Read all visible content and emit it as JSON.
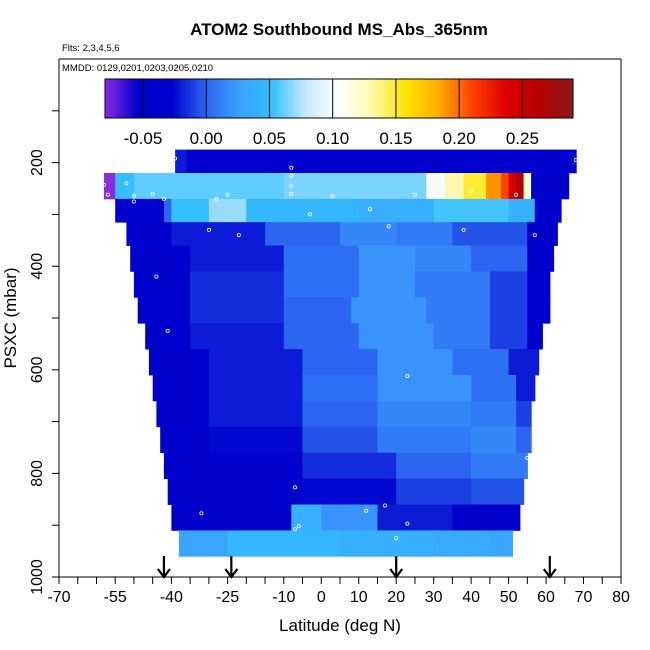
{
  "chart_data": {
    "type": "heatmap",
    "title": "ATOM2 Southbound MS_Abs_365nm",
    "flights_note": "Flts: 2,3,4,5,6",
    "dates_note": "MMDD: 0129,0201,0203,0205,0210",
    "xlabel": "Latitude (deg N)",
    "ylabel": "PSXC (mbar)",
    "xlim": [
      -70,
      80
    ],
    "ylim": [
      1000,
      0
    ],
    "x_ticks": [
      {
        "value": -70,
        "label": "-70"
      },
      {
        "value": -55,
        "label": "-55"
      },
      {
        "value": -40,
        "label": "-40"
      },
      {
        "value": -25,
        "label": "-25"
      },
      {
        "value": -10,
        "label": "-10"
      },
      {
        "value": 0,
        "label": "0"
      },
      {
        "value": 10,
        "label": "10"
      },
      {
        "value": 20,
        "label": "20"
      },
      {
        "value": 30,
        "label": "30"
      },
      {
        "value": 40,
        "label": "40"
      },
      {
        "value": 50,
        "label": "50"
      },
      {
        "value": 60,
        "label": "60"
      },
      {
        "value": 70,
        "label": "70"
      },
      {
        "value": 80,
        "label": "80"
      }
    ],
    "y_ticks": [
      {
        "value": 200,
        "label": "200"
      },
      {
        "value": 400,
        "label": "400"
      },
      {
        "value": 600,
        "label": "600"
      },
      {
        "value": 800,
        "label": "800"
      },
      {
        "value": 1000,
        "label": "1000"
      }
    ],
    "colorbar": {
      "min": -0.08,
      "max": 0.29,
      "ticks": [
        {
          "value": -0.05,
          "label": "-0.05"
        },
        {
          "value": 0.0,
          "label": "0.00"
        },
        {
          "value": 0.05,
          "label": "0.05"
        },
        {
          "value": 0.1,
          "label": "0.10"
        },
        {
          "value": 0.15,
          "label": "0.15"
        },
        {
          "value": 0.2,
          "label": "0.20"
        },
        {
          "value": 0.25,
          "label": "0.25"
        }
      ],
      "colors": [
        "#8a2be2",
        "#0000cd",
        "#0000cd",
        "#2b63f0",
        "#3ba0ff",
        "#33c0ff",
        "#c8e8ff",
        "#ffffff",
        "#fff9a8",
        "#ffe600",
        "#ffaa00",
        "#ff4000",
        "#dd0000",
        "#b40000",
        "#8b1a1a"
      ]
    },
    "arrows_lat": [
      -42,
      -24,
      20,
      61
    ],
    "layers": [
      {
        "p_top": 175,
        "p_bot": 220,
        "lat_min": -39,
        "lat_max": 68,
        "segments": [
          [
            -39,
            -36,
            -0.02
          ],
          [
            -36,
            60,
            -0.03
          ],
          [
            60,
            68,
            -0.05
          ]
        ]
      },
      {
        "p_top": 220,
        "p_bot": 270,
        "lat_min": -58,
        "lat_max": 66,
        "segments": [
          [
            -58,
            -55,
            -0.08
          ],
          [
            -55,
            -50,
            0.05
          ],
          [
            -50,
            -40,
            0.06
          ],
          [
            -40,
            -10,
            0.06
          ],
          [
            -10,
            28,
            0.065
          ],
          [
            28,
            33,
            0.1
          ],
          [
            33,
            38,
            0.13
          ],
          [
            38,
            44,
            0.15
          ],
          [
            44,
            48,
            0.19
          ],
          [
            48,
            50,
            0.21
          ],
          [
            50,
            52,
            0.24
          ],
          [
            52,
            54,
            0.27
          ],
          [
            54,
            56,
            0.12
          ],
          [
            56,
            66,
            -0.03
          ]
        ]
      },
      {
        "p_top": 270,
        "p_bot": 315,
        "lat_min": -55,
        "lat_max": 64,
        "segments": [
          [
            -55,
            -42,
            -0.03
          ],
          [
            -42,
            -40,
            0.0
          ],
          [
            -40,
            -30,
            0.05
          ],
          [
            -30,
            -20,
            0.07
          ],
          [
            -20,
            10,
            0.045
          ],
          [
            10,
            30,
            0.04
          ],
          [
            30,
            50,
            0.055
          ],
          [
            50,
            57,
            0.04
          ],
          [
            57,
            64,
            -0.03
          ]
        ]
      },
      {
        "p_top": 315,
        "p_bot": 360,
        "lat_min": -52,
        "lat_max": 63,
        "segments": [
          [
            -52,
            -40,
            -0.04
          ],
          [
            -40,
            -15,
            -0.02
          ],
          [
            -15,
            5,
            0.0
          ],
          [
            5,
            20,
            0.015
          ],
          [
            20,
            35,
            0.01
          ],
          [
            35,
            55,
            -0.005
          ],
          [
            55,
            63,
            -0.03
          ]
        ]
      },
      {
        "p_top": 360,
        "p_bot": 410,
        "lat_min": -51,
        "lat_max": 62,
        "segments": [
          [
            -51,
            -35,
            -0.04
          ],
          [
            -35,
            -10,
            -0.02
          ],
          [
            -10,
            10,
            0.005
          ],
          [
            10,
            25,
            0.02
          ],
          [
            25,
            40,
            0.015
          ],
          [
            40,
            55,
            0.0
          ],
          [
            55,
            62,
            -0.03
          ]
        ]
      },
      {
        "p_top": 410,
        "p_bot": 460,
        "lat_min": -50,
        "lat_max": 61,
        "segments": [
          [
            -50,
            -35,
            -0.04
          ],
          [
            -35,
            -10,
            -0.015
          ],
          [
            -10,
            10,
            0.005
          ],
          [
            10,
            25,
            0.02
          ],
          [
            25,
            45,
            0.01
          ],
          [
            45,
            55,
            -0.01
          ],
          [
            55,
            61,
            -0.03
          ]
        ]
      },
      {
        "p_top": 460,
        "p_bot": 510,
        "lat_min": -49,
        "lat_max": 61,
        "segments": [
          [
            -49,
            -35,
            -0.035
          ],
          [
            -35,
            -10,
            -0.015
          ],
          [
            -10,
            8,
            0.0
          ],
          [
            8,
            28,
            0.02
          ],
          [
            28,
            45,
            0.01
          ],
          [
            45,
            55,
            -0.01
          ],
          [
            55,
            61,
            -0.03
          ]
        ]
      },
      {
        "p_top": 510,
        "p_bot": 560,
        "lat_min": -47,
        "lat_max": 59,
        "segments": [
          [
            -47,
            -35,
            -0.035
          ],
          [
            -35,
            -10,
            -0.02
          ],
          [
            -10,
            10,
            0.0
          ],
          [
            10,
            30,
            0.02
          ],
          [
            30,
            45,
            0.01
          ],
          [
            45,
            55,
            -0.01
          ],
          [
            55,
            59,
            -0.03
          ]
        ]
      },
      {
        "p_top": 560,
        "p_bot": 610,
        "lat_min": -46,
        "lat_max": 58,
        "segments": [
          [
            -46,
            -30,
            -0.035
          ],
          [
            -30,
            -5,
            -0.02
          ],
          [
            -5,
            15,
            0.0
          ],
          [
            15,
            35,
            0.02
          ],
          [
            35,
            50,
            0.005
          ],
          [
            50,
            58,
            -0.02
          ]
        ]
      },
      {
        "p_top": 610,
        "p_bot": 660,
        "lat_min": -45,
        "lat_max": 57,
        "segments": [
          [
            -45,
            -30,
            -0.035
          ],
          [
            -30,
            -5,
            -0.02
          ],
          [
            -5,
            15,
            0.005
          ],
          [
            15,
            40,
            0.02
          ],
          [
            40,
            52,
            0.005
          ],
          [
            52,
            57,
            -0.02
          ]
        ]
      },
      {
        "p_top": 660,
        "p_bot": 710,
        "lat_min": -44,
        "lat_max": 56,
        "segments": [
          [
            -44,
            -30,
            -0.035
          ],
          [
            -30,
            -5,
            -0.02
          ],
          [
            -5,
            15,
            0.0
          ],
          [
            15,
            40,
            0.015
          ],
          [
            40,
            52,
            0.01
          ],
          [
            52,
            56,
            -0.01
          ]
        ]
      },
      {
        "p_top": 710,
        "p_bot": 760,
        "lat_min": -43,
        "lat_max": 56,
        "segments": [
          [
            -43,
            -30,
            -0.04
          ],
          [
            -30,
            -5,
            -0.025
          ],
          [
            -5,
            15,
            -0.005
          ],
          [
            15,
            40,
            0.01
          ],
          [
            40,
            52,
            0.015
          ],
          [
            52,
            56,
            0.0
          ]
        ]
      },
      {
        "p_top": 760,
        "p_bot": 810,
        "lat_min": -42,
        "lat_max": 55,
        "segments": [
          [
            -42,
            -25,
            -0.04
          ],
          [
            -25,
            -5,
            -0.03
          ],
          [
            -5,
            20,
            -0.015
          ],
          [
            20,
            40,
            0.0
          ],
          [
            40,
            55,
            0.01
          ]
        ]
      },
      {
        "p_top": 810,
        "p_bot": 860,
        "lat_min": -41,
        "lat_max": 54,
        "segments": [
          [
            -41,
            -25,
            -0.04
          ],
          [
            -25,
            -5,
            -0.03
          ],
          [
            -5,
            20,
            -0.025
          ],
          [
            20,
            40,
            -0.01
          ],
          [
            40,
            54,
            -0.005
          ]
        ]
      },
      {
        "p_top": 860,
        "p_bot": 910,
        "lat_min": -40,
        "lat_max": 53,
        "segments": [
          [
            -40,
            -8,
            -0.045
          ],
          [
            -8,
            0,
            0.04
          ],
          [
            0,
            15,
            0.02
          ],
          [
            15,
            35,
            -0.02
          ],
          [
            35,
            53,
            -0.035
          ]
        ]
      },
      {
        "p_top": 910,
        "p_bot": 960,
        "lat_min": -38,
        "lat_max": 51,
        "segments": [
          [
            -38,
            -25,
            0.03
          ],
          [
            -25,
            5,
            0.045
          ],
          [
            5,
            30,
            0.04
          ],
          [
            30,
            45,
            0.035
          ],
          [
            45,
            51,
            0.03
          ]
        ]
      }
    ],
    "sample_points": [
      [
        -39,
        192
      ],
      [
        -58,
        243
      ],
      [
        -52,
        240
      ],
      [
        -8,
        210
      ],
      [
        -8,
        225
      ],
      [
        -8,
        245
      ],
      [
        -8,
        260
      ],
      [
        -57,
        262
      ],
      [
        -50,
        264
      ],
      [
        -45,
        260
      ],
      [
        -25,
        262
      ],
      [
        3,
        265
      ],
      [
        25,
        262
      ],
      [
        40,
        255
      ],
      [
        52,
        262
      ],
      [
        68,
        195
      ],
      [
        -28,
        270
      ],
      [
        -50,
        275
      ],
      [
        -42,
        270
      ],
      [
        -3,
        300
      ],
      [
        13,
        290
      ],
      [
        18,
        323
      ],
      [
        38,
        330
      ],
      [
        -30,
        330
      ],
      [
        -22,
        340
      ],
      [
        57,
        340
      ],
      [
        -53,
        365
      ],
      [
        -44,
        420
      ],
      [
        62,
        500
      ],
      [
        -41,
        525
      ],
      [
        23,
        612
      ],
      [
        55,
        770
      ],
      [
        -7,
        827
      ],
      [
        -32,
        877
      ],
      [
        12,
        872
      ],
      [
        17,
        862
      ],
      [
        -6,
        902
      ],
      [
        -7,
        908
      ],
      [
        23,
        897
      ],
      [
        20,
        925
      ]
    ]
  }
}
